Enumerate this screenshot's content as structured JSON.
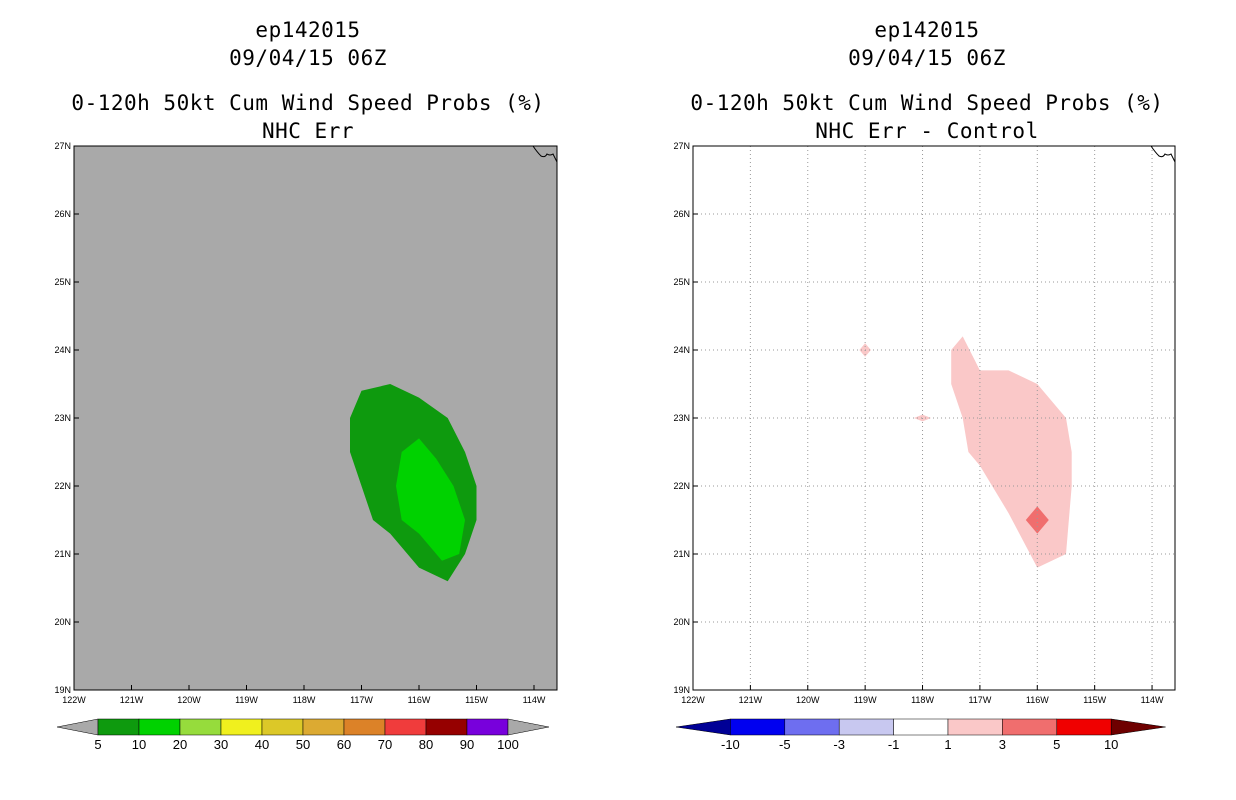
{
  "chart_data": [
    {
      "type": "contour_map",
      "title": "ep142015",
      "subtitle": "09/04/15 06Z",
      "variable": "0-120h 50kt Cum Wind Speed Probs (%)",
      "panel": "NHC Err",
      "xlim": [
        -122,
        -113.6
      ],
      "ylim": [
        19,
        27
      ],
      "x_ticks": [
        "122W",
        "121W",
        "120W",
        "119W",
        "118W",
        "117W",
        "116W",
        "115W",
        "114W"
      ],
      "y_ticks": [
        "19N",
        "20N",
        "21N",
        "22N",
        "23N",
        "24N",
        "25N",
        "26N",
        "27N"
      ],
      "background": "#a9a9a9",
      "gridlines": false,
      "contours": [
        {
          "level": "5-10",
          "color": "#0e9a0e",
          "polygon": [
            [
              -117.2,
              23
            ],
            [
              -117,
              23.4
            ],
            [
              -116.5,
              23.5
            ],
            [
              -116,
              23.3
            ],
            [
              -115.5,
              23
            ],
            [
              -115.2,
              22.5
            ],
            [
              -115,
              22
            ],
            [
              -115,
              21.5
            ],
            [
              -115.2,
              21
            ],
            [
              -115.5,
              20.6
            ],
            [
              -116,
              20.8
            ],
            [
              -116.5,
              21.3
            ],
            [
              -116.8,
              21.5
            ],
            [
              -117,
              22
            ],
            [
              -117.2,
              22.5
            ]
          ]
        },
        {
          "level": "10-20",
          "color": "#00d200",
          "polygon": [
            [
              -116.3,
              22.5
            ],
            [
              -116,
              22.7
            ],
            [
              -115.7,
              22.4
            ],
            [
              -115.4,
              22
            ],
            [
              -115.2,
              21.5
            ],
            [
              -115.3,
              21
            ],
            [
              -115.6,
              20.9
            ],
            [
              -116,
              21.3
            ],
            [
              -116.3,
              21.5
            ],
            [
              -116.4,
              22
            ]
          ]
        }
      ],
      "colorbar": {
        "labels": [
          "5",
          "10",
          "20",
          "30",
          "40",
          "50",
          "60",
          "70",
          "80",
          "90",
          "100"
        ],
        "colors": [
          "#0e9a0e",
          "#00d200",
          "#96dc3c",
          "#f0f01e",
          "#dcc828",
          "#dcaa32",
          "#dc8228",
          "#f03c3c",
          "#960000",
          "#7800dc"
        ],
        "below_color": "#a9a9a9",
        "above_color": "#a9a9a9"
      }
    },
    {
      "type": "contour_map",
      "title": "ep142015",
      "subtitle": "09/04/15 06Z",
      "variable": "0-120h 50kt Cum Wind Speed Probs (%)",
      "panel": "NHC Err - Control",
      "xlim": [
        -122,
        -113.6
      ],
      "ylim": [
        19,
        27
      ],
      "x_ticks": [
        "122W",
        "121W",
        "120W",
        "119W",
        "118W",
        "117W",
        "116W",
        "115W",
        "114W"
      ],
      "y_ticks": [
        "19N",
        "20N",
        "21N",
        "22N",
        "23N",
        "24N",
        "25N",
        "26N",
        "27N"
      ],
      "background": "#ffffff",
      "gridlines": true,
      "contours": [
        {
          "level": "1-3",
          "color": "#fac8c8",
          "polygon": [
            [
              -117.5,
              24
            ],
            [
              -117.3,
              24.2
            ],
            [
              -117,
              23.7
            ],
            [
              -116.5,
              23.7
            ],
            [
              -116,
              23.5
            ],
            [
              -115.5,
              23
            ],
            [
              -115.4,
              22.5
            ],
            [
              -115.4,
              22
            ],
            [
              -115.5,
              21
            ],
            [
              -116,
              20.8
            ],
            [
              -116.5,
              21.6
            ],
            [
              -117,
              22.3
            ],
            [
              -117.2,
              22.5
            ],
            [
              -117.3,
              23
            ],
            [
              -117.5,
              23.5
            ]
          ]
        },
        {
          "level": "1-3",
          "color": "#fac8c8",
          "polygon": [
            [
              -119,
              24.1
            ],
            [
              -118.9,
              24
            ],
            [
              -119,
              23.9
            ],
            [
              -119.1,
              24
            ]
          ]
        },
        {
          "level": "1-3",
          "color": "#fac8c8",
          "polygon": [
            [
              -118,
              23.05
            ],
            [
              -117.85,
              23
            ],
            [
              -118,
              22.95
            ],
            [
              -118.15,
              23
            ]
          ]
        },
        {
          "level": "3-5",
          "color": "#f06e6e",
          "polygon": [
            [
              -116,
              21.7
            ],
            [
              -115.8,
              21.5
            ],
            [
              -116,
              21.3
            ],
            [
              -116.2,
              21.5
            ]
          ]
        }
      ],
      "colorbar": {
        "labels": [
          "-10",
          "-5",
          "-3",
          "-1",
          "1",
          "3",
          "5",
          "10"
        ],
        "colors": [
          "#0000f0",
          "#6e6ef0",
          "#c8c8f0",
          "#ffffff",
          "#fac8c8",
          "#f06e6e",
          "#f00000"
        ],
        "below_color": "#000096",
        "above_color": "#6e0000"
      }
    }
  ]
}
